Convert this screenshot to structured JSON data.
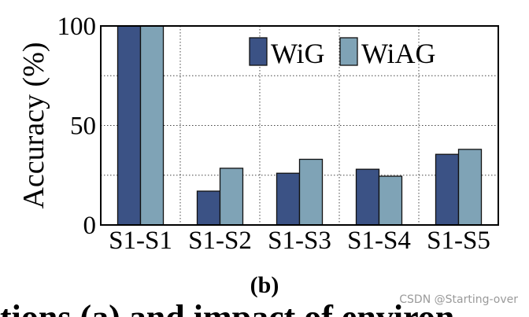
{
  "chart_data": {
    "type": "bar",
    "categories": [
      "S1-S1",
      "S1-S2",
      "S1-S3",
      "S1-S4",
      "S1-S5"
    ],
    "series": [
      {
        "name": "WiG",
        "values": [
          100,
          17,
          26,
          28,
          35.5
        ],
        "color": "#3b5285"
      },
      {
        "name": "WiAG",
        "values": [
          100,
          28.5,
          33,
          24.5,
          38
        ],
        "color": "#7fa3b6"
      }
    ],
    "ylabel": "Accuracy (%)",
    "xlabel": "",
    "ylim": [
      0,
      100
    ],
    "yticks": [
      0,
      50,
      100
    ],
    "grid": "dotted",
    "legend_position": "top-right"
  },
  "caption": "(b)",
  "cut_text": "tions (a) and impact of environ",
  "watermark": "CSDN @Starting-over"
}
